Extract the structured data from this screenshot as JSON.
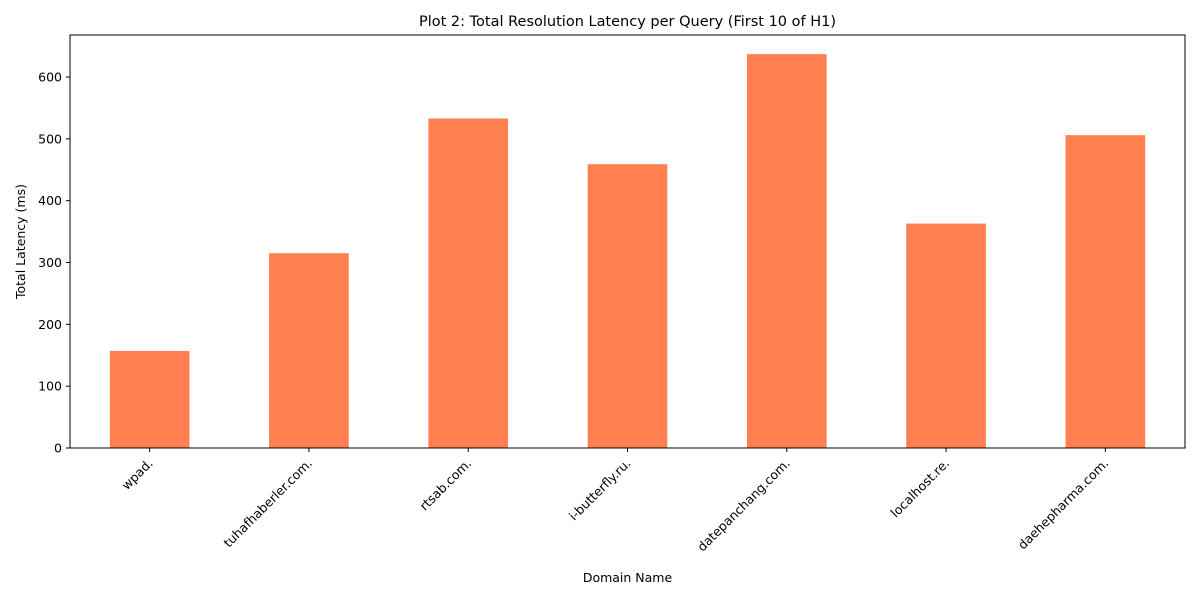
{
  "chart_data": {
    "type": "bar",
    "title": "Plot 2: Total Resolution Latency per Query (First 10 of H1)",
    "xlabel": "Domain Name",
    "ylabel": "Total Latency (ms)",
    "categories": [
      "wpad.",
      "tuhafhaberler.com.",
      "rtsab.com.",
      "i-butterfly.ru.",
      "datepanchang.com.",
      "localhost.re.",
      "daehepharma.com."
    ],
    "values": [
      157,
      315,
      533,
      459,
      637,
      363,
      506
    ],
    "ylim": [
      0,
      668
    ],
    "yticks": [
      0,
      100,
      200,
      300,
      400,
      500,
      600
    ],
    "grid": false,
    "legend": "none",
    "bar_color": "#ff7f50"
  }
}
